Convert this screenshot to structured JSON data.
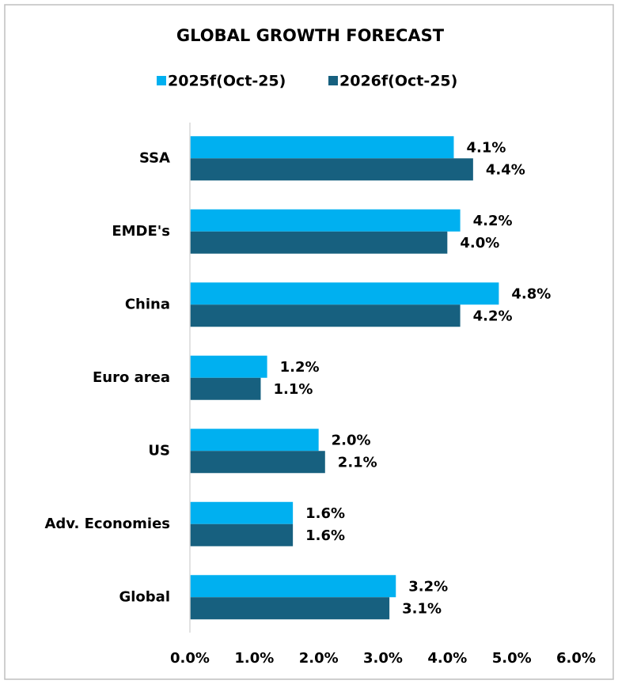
{
  "chart_data": {
    "type": "hbar",
    "title": "GLOBAL GROWTH FORECAST",
    "categories": [
      "SSA",
      "EMDE's",
      "China",
      "Euro area",
      "US",
      "Adv. Economies",
      "Global"
    ],
    "series": [
      {
        "name": "2025f(Oct-25)",
        "color": "#00b0f0",
        "values": [
          4.1,
          4.2,
          4.8,
          1.2,
          2.0,
          1.6,
          3.2
        ],
        "value_labels": [
          "4.1%",
          "4.2%",
          "4.8%",
          "1.2%",
          "2.0%",
          "1.6%",
          "3.2%"
        ]
      },
      {
        "name": "2026f(Oct-25)",
        "color": "#17607f",
        "values": [
          4.4,
          4.0,
          4.2,
          1.1,
          2.1,
          1.6,
          3.1
        ],
        "value_labels": [
          "4.4%",
          "4.0%",
          "4.2%",
          "1.1%",
          "2.1%",
          "1.6%",
          "3.1%"
        ]
      }
    ],
    "xlim": [
      0,
      6
    ],
    "xticks": [
      {
        "value": 0,
        "label": "0.0%"
      },
      {
        "value": 1,
        "label": "1.0%"
      },
      {
        "value": 2,
        "label": "2.0%"
      },
      {
        "value": 3,
        "label": "3.0%"
      },
      {
        "value": 4,
        "label": "4.0%"
      },
      {
        "value": 5,
        "label": "5.0%"
      },
      {
        "value": 6,
        "label": "6.0%"
      }
    ],
    "grid": false,
    "legend": "top"
  }
}
